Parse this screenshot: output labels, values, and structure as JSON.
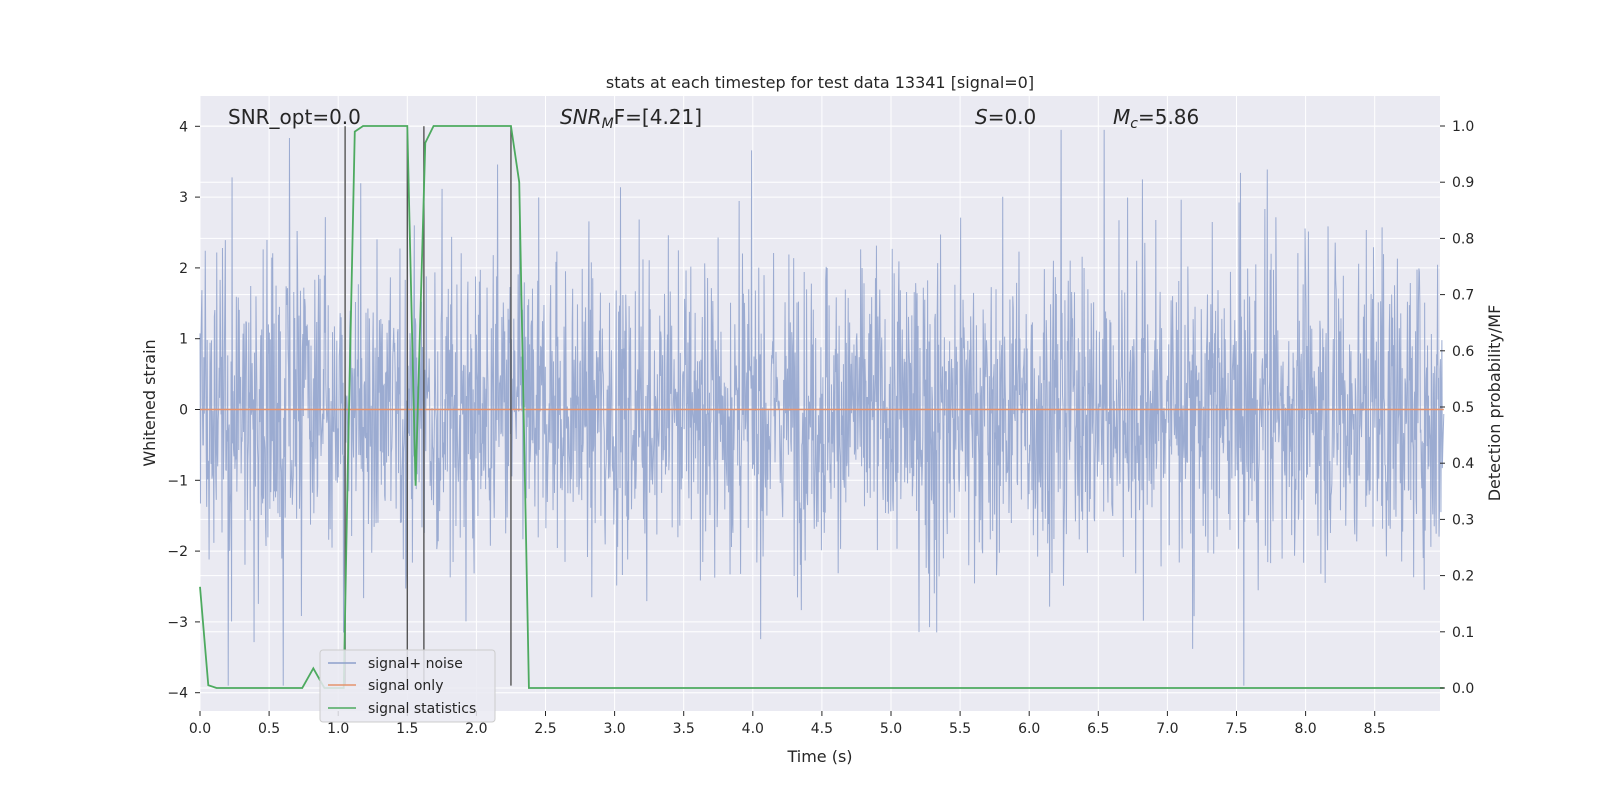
{
  "chart_data": {
    "type": "line",
    "title": "stats at each timestep for test data 13341 [signal=0]",
    "xlabel": "Time (s)",
    "ylabel": "Whitened strain",
    "y2label": "Detection probability/MF",
    "xlim": [
      0,
      9.0
    ],
    "ylim": [
      -4.3,
      4.4
    ],
    "y2lim": [
      -0.045,
      1.045
    ],
    "grid": true,
    "legend_position": "lower-left",
    "x_ticks": [
      "0.0",
      "0.5",
      "1.0",
      "1.5",
      "2.0",
      "2.5",
      "3.0",
      "3.5",
      "4.0",
      "4.5",
      "5.0",
      "5.5",
      "6.0",
      "6.5",
      "7.0",
      "7.5",
      "8.0",
      "8.5"
    ],
    "x_tick_values": [
      0,
      0.5,
      1.0,
      1.5,
      2.0,
      2.5,
      3.0,
      3.5,
      4.0,
      4.5,
      5.0,
      5.5,
      6.0,
      6.5,
      7.0,
      7.5,
      8.0,
      8.5
    ],
    "y_ticks": [
      "4",
      "3",
      "2",
      "1",
      "0",
      "−1",
      "−2",
      "−3",
      "−4"
    ],
    "y_tick_values": [
      4,
      3,
      2,
      1,
      0,
      -1,
      -2,
      -3,
      -4
    ],
    "y2_ticks": [
      "1.0",
      "0.9",
      "0.8",
      "0.7",
      "0.6",
      "0.5",
      "0.4",
      "0.3",
      "0.2",
      "0.1",
      "0.0"
    ],
    "y2_tick_values": [
      1.0,
      0.9,
      0.8,
      0.7,
      0.6,
      0.5,
      0.4,
      0.3,
      0.2,
      0.1,
      0.0
    ],
    "annotations": {
      "snr_opt": "SNR_opt=0.0",
      "snr_mf_sym": "SNR",
      "snr_mf_sub": "M",
      "snr_mf_rest": "F=[4.21]",
      "s_sym": "S",
      "s_rest": "=0.0",
      "mc_sym": "M",
      "mc_sub": "c",
      "mc_rest": "=5.86"
    },
    "vertical_lines_x": [
      1.05,
      1.5,
      1.62,
      2.25
    ],
    "series": [
      {
        "name": "signal+ noise",
        "color": "#8da0cb",
        "axis": "left",
        "description_values": "whitened noise, approx. within ±4"
      },
      {
        "name": "signal only",
        "color": "#e5936d",
        "axis": "left",
        "x": [
          0,
          9.0
        ],
        "values": [
          0,
          0
        ]
      },
      {
        "name": "signal statistics",
        "color": "#4daa5f",
        "axis": "right",
        "x": [
          0,
          0.06,
          0.12,
          0.2,
          0.74,
          0.82,
          0.9,
          1.04,
          1.07,
          1.12,
          1.18,
          1.5,
          1.56,
          1.63,
          1.69,
          2.25,
          2.31,
          2.38,
          2.45,
          9.0
        ],
        "values": [
          0.18,
          0.005,
          0.0,
          0.0,
          0.0,
          0.035,
          0.0,
          0.0,
          0.4,
          0.99,
          1.0,
          1.0,
          0.36,
          0.97,
          1.0,
          1.0,
          0.9,
          0.0,
          0.0,
          0.0
        ]
      }
    ]
  },
  "legend": {
    "items": [
      {
        "label": "signal+ noise",
        "color": "#8da0cb"
      },
      {
        "label": "signal only",
        "color": "#e5936d"
      },
      {
        "label": "signal statistics",
        "color": "#4daa5f"
      }
    ]
  }
}
